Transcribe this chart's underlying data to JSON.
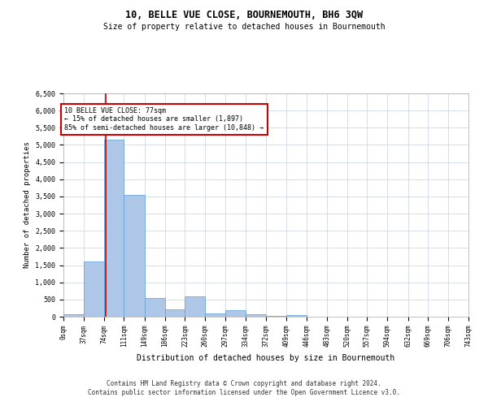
{
  "title": "10, BELLE VUE CLOSE, BOURNEMOUTH, BH6 3QW",
  "subtitle": "Size of property relative to detached houses in Bournemouth",
  "xlabel": "Distribution of detached houses by size in Bournemouth",
  "ylabel": "Number of detached properties",
  "footer_line1": "Contains HM Land Registry data © Crown copyright and database right 2024.",
  "footer_line2": "Contains public sector information licensed under the Open Government Licence v3.0.",
  "annotation_line1": "10 BELLE VUE CLOSE: 77sqm",
  "annotation_line2": "← 15% of detached houses are smaller (1,897)",
  "annotation_line3": "85% of semi-detached houses are larger (10,848) →",
  "property_size_sqm": 77,
  "bar_color": "#aec6e8",
  "bar_edge_color": "#5a9fd4",
  "vline_color": "#cc0000",
  "annotation_box_edge": "#cc0000",
  "background_color": "#ffffff",
  "grid_color": "#d0d8e8",
  "bin_edges": [
    0,
    37,
    74,
    111,
    149,
    186,
    223,
    260,
    297,
    334,
    372,
    409,
    446,
    483,
    520,
    557,
    594,
    632,
    669,
    706,
    743
  ],
  "bar_heights": [
    75,
    1600,
    5150,
    3550,
    550,
    210,
    600,
    100,
    200,
    80,
    20,
    50,
    5,
    2,
    1,
    0,
    0,
    0,
    0,
    0
  ],
  "ylim": [
    0,
    6500
  ],
  "yticks": [
    0,
    500,
    1000,
    1500,
    2000,
    2500,
    3000,
    3500,
    4000,
    4500,
    5000,
    5500,
    6000,
    6500
  ]
}
